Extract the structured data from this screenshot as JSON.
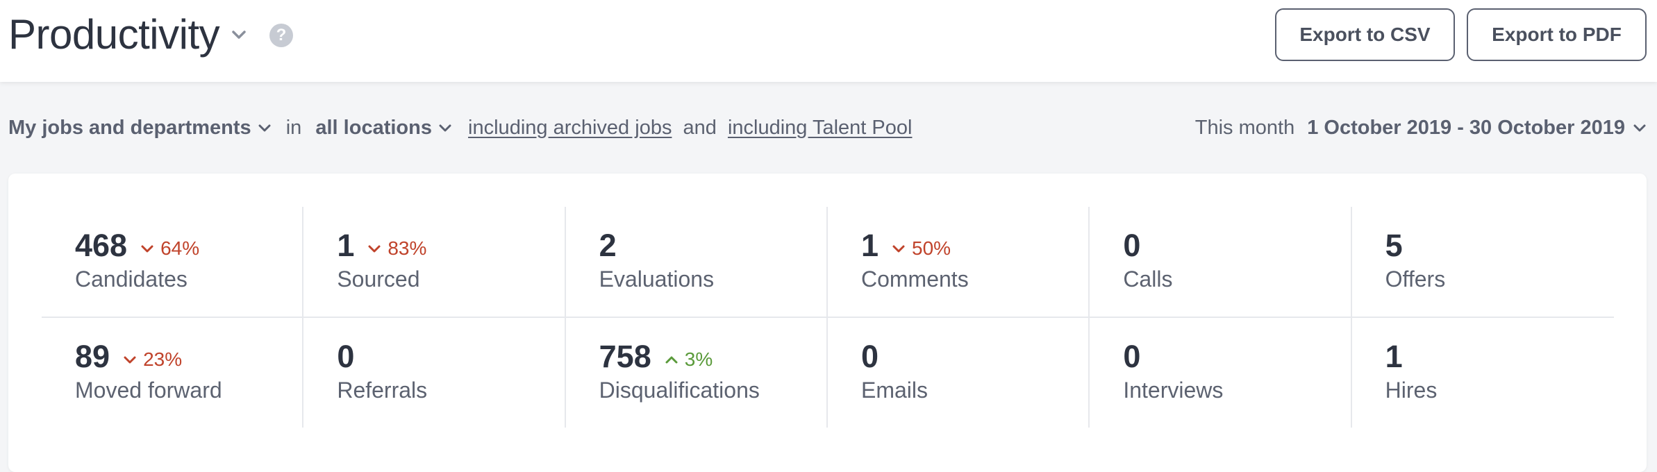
{
  "header": {
    "title": "Productivity",
    "help_icon": "?",
    "export_csv_label": "Export to CSV",
    "export_pdf_label": "Export to PDF"
  },
  "filters": {
    "scope": "My jobs and departments",
    "in_word": "in",
    "location": "all locations",
    "archived_link": "including archived jobs",
    "and_word": "and",
    "talent_pool_link": "including Talent Pool",
    "period_label": "This month",
    "date_range": "1 October 2019 - 30 October 2019"
  },
  "colors": {
    "down": "#c0432b",
    "up": "#5a9a3a",
    "text": "#2d3340",
    "muted": "#5c6270"
  },
  "metrics": {
    "row1": [
      {
        "value": "468",
        "label": "Candidates",
        "change": "64%",
        "direction": "down"
      },
      {
        "value": "1",
        "label": "Sourced",
        "change": "83%",
        "direction": "down"
      },
      {
        "value": "2",
        "label": "Evaluations",
        "change": "",
        "direction": ""
      },
      {
        "value": "1",
        "label": "Comments",
        "change": "50%",
        "direction": "down"
      },
      {
        "value": "0",
        "label": "Calls",
        "change": "",
        "direction": ""
      },
      {
        "value": "5",
        "label": "Offers",
        "change": "",
        "direction": ""
      }
    ],
    "row2": [
      {
        "value": "89",
        "label": "Moved forward",
        "change": "23%",
        "direction": "down"
      },
      {
        "value": "0",
        "label": "Referrals",
        "change": "",
        "direction": ""
      },
      {
        "value": "758",
        "label": "Disqualifications",
        "change": "3%",
        "direction": "up"
      },
      {
        "value": "0",
        "label": "Emails",
        "change": "",
        "direction": ""
      },
      {
        "value": "0",
        "label": "Interviews",
        "change": "",
        "direction": ""
      },
      {
        "value": "1",
        "label": "Hires",
        "change": "",
        "direction": ""
      }
    ]
  }
}
